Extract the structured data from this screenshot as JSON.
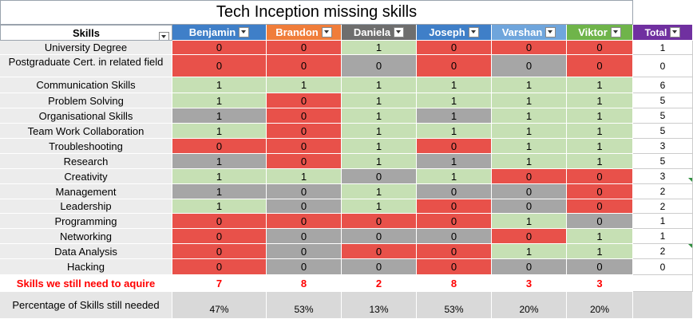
{
  "title": "Tech Inception missing skills",
  "headers": {
    "skills": "Skills",
    "total": "Total",
    "people": [
      {
        "name": "Benjamin",
        "color": "#3f7fc8"
      },
      {
        "name": "Brandon",
        "color": "#f07d3a"
      },
      {
        "name": "Daniela",
        "color": "#6e6e6e"
      },
      {
        "name": "Joseph",
        "color": "#3f7fc8"
      },
      {
        "name": "Varshan",
        "color": "#6fa5dc"
      },
      {
        "name": "Viktor",
        "color": "#6fb44a"
      }
    ],
    "total_color": "#7030a0"
  },
  "rows": [
    {
      "skill": "University Degree",
      "values": [
        "0",
        "0",
        "1",
        "0",
        "0",
        "0"
      ],
      "colors": [
        "r",
        "r",
        "g",
        "r",
        "r",
        "r"
      ],
      "total": "1"
    },
    {
      "skill": "Postgraduate Cert. in related field",
      "values": [
        "0",
        "0",
        "0",
        "0",
        "0",
        "0"
      ],
      "colors": [
        "r",
        "r",
        "x",
        "r",
        "x",
        "r"
      ],
      "total": "0"
    },
    {
      "skill": "Communication Skills",
      "values": [
        "1",
        "1",
        "1",
        "1",
        "1",
        "1"
      ],
      "colors": [
        "g",
        "g",
        "g",
        "g",
        "g",
        "g"
      ],
      "total": "6"
    },
    {
      "skill": "Problem Solving",
      "values": [
        "1",
        "0",
        "1",
        "1",
        "1",
        "1"
      ],
      "colors": [
        "g",
        "r",
        "g",
        "g",
        "g",
        "g"
      ],
      "total": "5"
    },
    {
      "skill": "Organisational Skills",
      "values": [
        "1",
        "0",
        "1",
        "1",
        "1",
        "1"
      ],
      "colors": [
        "x",
        "r",
        "g",
        "x",
        "g",
        "g"
      ],
      "total": "5"
    },
    {
      "skill": "Team Work Collaboration",
      "values": [
        "1",
        "0",
        "1",
        "1",
        "1",
        "1"
      ],
      "colors": [
        "g",
        "r",
        "g",
        "g",
        "g",
        "g"
      ],
      "total": "5"
    },
    {
      "skill": "Troubleshooting",
      "values": [
        "0",
        "0",
        "1",
        "0",
        "1",
        "1"
      ],
      "colors": [
        "r",
        "r",
        "g",
        "r",
        "g",
        "g"
      ],
      "total": "3"
    },
    {
      "skill": "Research",
      "values": [
        "1",
        "0",
        "1",
        "1",
        "1",
        "1"
      ],
      "colors": [
        "x",
        "r",
        "g",
        "x",
        "g",
        "g"
      ],
      "total": "5"
    },
    {
      "skill": "Creativity",
      "values": [
        "1",
        "1",
        "0",
        "1",
        "0",
        "0"
      ],
      "colors": [
        "g",
        "g",
        "x",
        "g",
        "r",
        "r"
      ],
      "total": "3"
    },
    {
      "skill": "Management",
      "values": [
        "1",
        "0",
        "1",
        "0",
        "0",
        "0"
      ],
      "colors": [
        "x",
        "x",
        "g",
        "x",
        "x",
        "r"
      ],
      "total": "2"
    },
    {
      "skill": "Leadership",
      "values": [
        "1",
        "0",
        "1",
        "0",
        "0",
        "0"
      ],
      "colors": [
        "g",
        "x",
        "g",
        "r",
        "x",
        "r"
      ],
      "total": "2"
    },
    {
      "skill": "Programming",
      "values": [
        "0",
        "0",
        "0",
        "0",
        "1",
        "0"
      ],
      "colors": [
        "r",
        "r",
        "r",
        "r",
        "g",
        "x"
      ],
      "total": "1"
    },
    {
      "skill": "Networking",
      "values": [
        "0",
        "0",
        "0",
        "0",
        "0",
        "1"
      ],
      "colors": [
        "r",
        "x",
        "x",
        "x",
        "r",
        "g"
      ],
      "total": "1"
    },
    {
      "skill": "Data Analysis",
      "values": [
        "0",
        "0",
        "0",
        "0",
        "1",
        "1"
      ],
      "colors": [
        "r",
        "x",
        "r",
        "r",
        "g",
        "g"
      ],
      "total": "2"
    },
    {
      "skill": "Hacking",
      "values": [
        "0",
        "0",
        "0",
        "0",
        "0",
        "0"
      ],
      "colors": [
        "r",
        "x",
        "x",
        "r",
        "x",
        "x"
      ],
      "total": "0"
    }
  ],
  "need": {
    "label": "Skills we still need to aquire",
    "values": [
      "7",
      "8",
      "2",
      "8",
      "3",
      "3"
    ]
  },
  "percent": {
    "label": "Percentage of Skills still needed",
    "values": [
      "47%",
      "53%",
      "13%",
      "53%",
      "20%",
      "20%"
    ]
  }
}
